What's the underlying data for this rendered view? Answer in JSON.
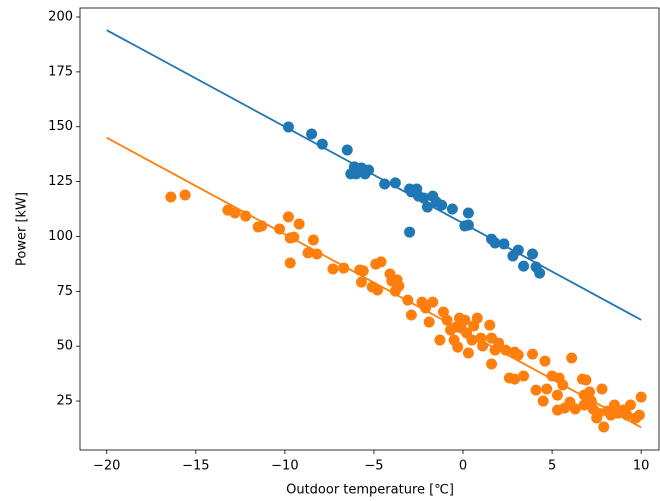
{
  "chart_data": {
    "type": "scatter",
    "xlabel": "Outdoor temperature [℃]",
    "ylabel": "Power [kW]",
    "xlim": [
      -21.5,
      11
    ],
    "ylim": [
      2.7,
      204.1
    ],
    "xticks": [
      {
        "value": -20,
        "label": "−20"
      },
      {
        "value": -15,
        "label": "−15"
      },
      {
        "value": -10,
        "label": "−10"
      },
      {
        "value": -5,
        "label": "−5"
      },
      0,
      5,
      10
    ],
    "yticks": [
      25,
      50,
      75,
      100,
      125,
      150,
      175,
      200
    ],
    "series": [
      {
        "color": "#1f77b4",
        "x": [
          -9.8,
          -8.5,
          -7.9,
          -6.5,
          -6.3,
          -6.1,
          -6.0,
          -5.7,
          -5.5,
          -5.3,
          -4.4,
          -3.8,
          -3.0,
          -2.9,
          -2.6,
          -2.5,
          -2.2,
          -2.0,
          -1.7,
          -1.5,
          -1.2,
          -0.6,
          0.1,
          0.3,
          0.3,
          -3.0,
          1.6,
          1.8,
          2.3,
          2.8,
          3.1,
          3.4,
          3.9,
          4.1,
          4.3
        ],
        "values": [
          149.9,
          146.7,
          142.1,
          139.4,
          128.5,
          131.7,
          128.5,
          131.2,
          128.5,
          130.3,
          123.9,
          124.4,
          121.6,
          120.3,
          121.6,
          118.4,
          117.5,
          113.4,
          118.4,
          115.7,
          114.3,
          112.5,
          104.8,
          110.7,
          105.2,
          102.0,
          98.8,
          97.0,
          96.6,
          91.1,
          93.8,
          86.5,
          92.0,
          86.1,
          83.3
        ],
        "fit": {
          "x": [
            -20,
            10
          ],
          "values": [
            194,
            62
          ]
        }
      },
      {
        "color": "#ff7f0e",
        "x": [
          -16.4,
          -15.6,
          -13.2,
          -12.8,
          -12.2,
          -11.5,
          -11.3,
          -10.3,
          -9.8,
          -9.7,
          -9.5,
          -9.2,
          -8.4,
          -8.7,
          -8.2,
          -9.7,
          -7.3,
          -6.7,
          -5.8,
          -5.6,
          -5.7,
          -5.1,
          -4.9,
          -4.6,
          -4.8,
          -4.1,
          -4.0,
          -3.7,
          -3.8,
          -3.6,
          -3.1,
          -2.9,
          -2.3,
          -2.1,
          -1.7,
          -1.9,
          -1.3,
          -1.1,
          -0.9,
          -0.7,
          -0.4,
          -0.5,
          -0.3,
          -0.2,
          -0.1,
          0.1,
          0.2,
          0.3,
          0.5,
          0.6,
          0.8,
          1.0,
          1.1,
          1.5,
          1.6,
          1.8,
          2.0,
          1.6,
          2.4,
          2.9,
          3.1,
          2.6,
          2.9,
          3.4,
          3.9,
          4.6,
          4.1,
          4.7,
          4.5,
          5.0,
          5.4,
          5.6,
          5.3,
          5.3,
          5.7,
          6.1,
          6.3,
          6.7,
          6.8,
          6.9,
          7.1,
          7.2,
          7.3,
          7.6,
          7.8,
          7.9,
          8.1,
          8.3,
          8.5,
          8.7,
          9.0,
          9.2,
          9.4,
          9.7,
          9.9,
          10.0,
          6.0,
          6.8,
          7.5
        ],
        "values": [
          118,
          118.9,
          112,
          110.7,
          109.3,
          104.3,
          104.8,
          103.4,
          108.9,
          99.3,
          99.7,
          105.7,
          98.4,
          92.5,
          92,
          87.9,
          85.2,
          85.6,
          84.7,
          84.3,
          79.2,
          77.0,
          87.4,
          88.4,
          75.6,
          82.9,
          79.7,
          80.2,
          75.1,
          77.4,
          71.0,
          64.2,
          70.1,
          67.4,
          70.1,
          61.0,
          52.8,
          65.6,
          61.9,
          57.4,
          58.7,
          52.8,
          49.6,
          62.8,
          58.3,
          61.9,
          56.0,
          46.9,
          52.8,
          59.2,
          62.8,
          53.7,
          50.1,
          59.6,
          53.7,
          48.2,
          51.4,
          41.9,
          48.2,
          47.3,
          46.0,
          35.5,
          35.0,
          36.4,
          46.4,
          43.2,
          30.0,
          30.5,
          25,
          36.4,
          35.5,
          32.3,
          27.7,
          20.9,
          21.8,
          44.6,
          21.4,
          35.0,
          27.7,
          34.6,
          29.1,
          25.0,
          21.4,
          19.5,
          30.5,
          13.2,
          20.4,
          18.6,
          23.2,
          19.5,
          20.9,
          18.6,
          23.2,
          17.3,
          18.6,
          26.8,
          24.5,
          23.2,
          17.3
        ],
        "fit": {
          "x": [
            -20,
            10
          ],
          "values": [
            145,
            13
          ]
        }
      }
    ]
  }
}
